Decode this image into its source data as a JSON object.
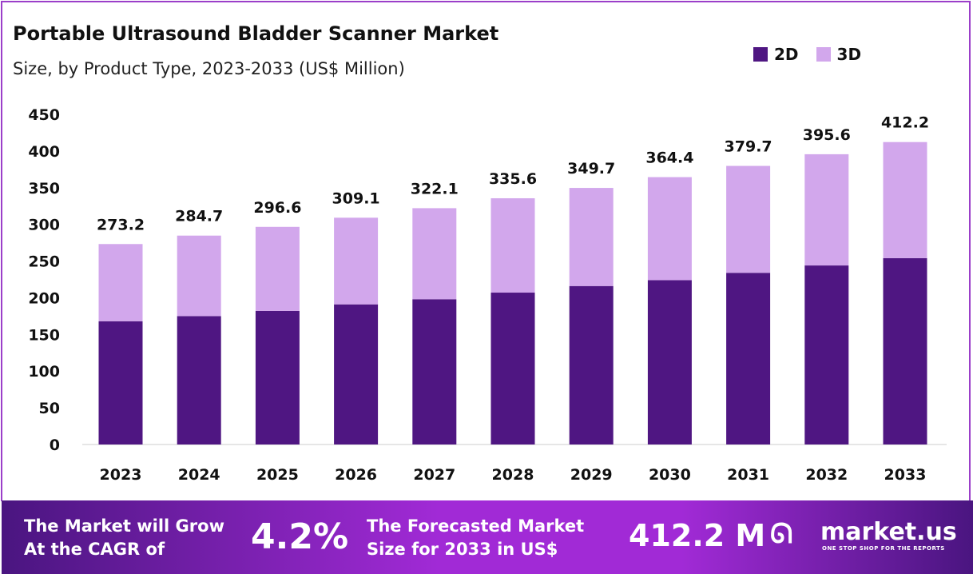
{
  "chart_data": {
    "type": "bar",
    "stacked": true,
    "title": "Portable Ultrasound Bladder Scanner Market",
    "subtitle": "Size, by Product Type, 2023-2033 (US$ Million)",
    "categories": [
      "2023",
      "2024",
      "2025",
      "2026",
      "2027",
      "2028",
      "2029",
      "2030",
      "2031",
      "2032",
      "2033"
    ],
    "series": [
      {
        "name": "2D",
        "color": "#4f1682",
        "values": [
          168,
          175,
          182,
          191,
          198,
          207,
          216,
          224,
          234,
          244,
          254
        ]
      },
      {
        "name": "3D",
        "color": "#d2a7ec",
        "values": [
          105.2,
          109.7,
          114.6,
          118.1,
          124.1,
          128.6,
          133.7,
          140.4,
          145.7,
          151.6,
          158.2
        ]
      }
    ],
    "totals": [
      "273.2",
      "284.7",
      "296.6",
      "309.1",
      "322.1",
      "335.6",
      "349.7",
      "364.4",
      "379.7",
      "395.6",
      "412.2"
    ],
    "ylim": [
      0,
      450
    ],
    "yticks": [
      "0",
      "50",
      "100",
      "150",
      "200",
      "250",
      "300",
      "350",
      "400",
      "450"
    ],
    "grid": false,
    "legend_position": "top-right"
  },
  "banner": {
    "cagr_label_1": "The Market will Grow",
    "cagr_label_2": "At the CAGR of",
    "cagr_value": "4.2%",
    "forecast_label_1": "The Forecasted Market",
    "forecast_label_2": "Size for 2033 in US$",
    "forecast_value": "412.2 M",
    "logo_text": "market.us",
    "logo_tagline": "ONE STOP SHOP FOR THE REPORTS"
  }
}
